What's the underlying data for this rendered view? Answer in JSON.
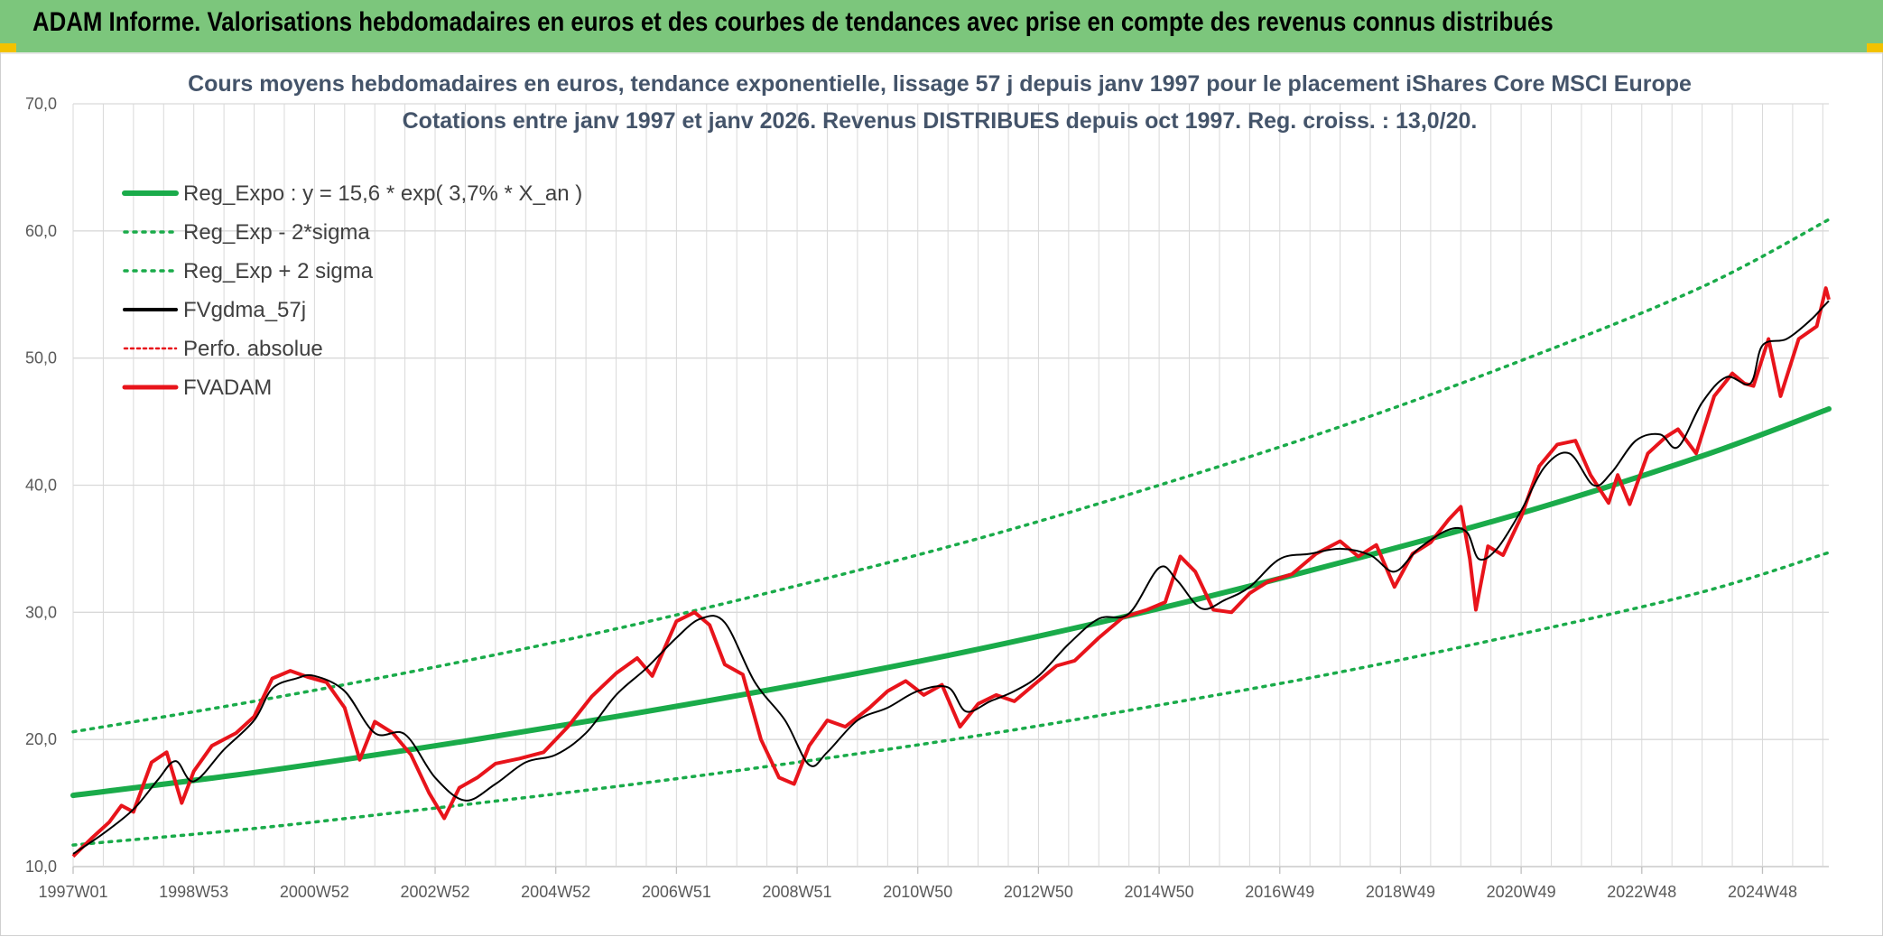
{
  "banner": {
    "title": "ADAM Informe. Valorisations hebdomadaires en euros et des courbes de tendances avec prise en compte des revenus connus distribués"
  },
  "colors": {
    "banner_bg": "#7cc67c",
    "trend": "#1aab4a",
    "fvgdma": "#000000",
    "fvadam": "#e8141b",
    "grid": "#d9d9d9"
  },
  "chart_data": {
    "type": "line",
    "title": "Cours moyens hebdomadaires en euros, tendance exponentielle, lissage 57 j depuis janv 1997 pour le placement iShares Core MSCI Europe",
    "subtitle": "Cotations entre janv 1997 et janv 2026. Revenus DISTRIBUES depuis oct 1997. Reg. croiss. : 13,0/20.",
    "ylim": [
      10,
      70
    ],
    "xlim": [
      1997.0,
      2026.1
    ],
    "y_ticks": [
      "10,0",
      "20,0",
      "30,0",
      "40,0",
      "50,0",
      "60,0",
      "70,0"
    ],
    "x_ticks": [
      {
        "label": "1997W01",
        "t": 1997.0
      },
      {
        "label": "1998W53",
        "t": 1999.0
      },
      {
        "label": "2000W52",
        "t": 2001.0
      },
      {
        "label": "2002W52",
        "t": 2003.0
      },
      {
        "label": "2004W52",
        "t": 2005.0
      },
      {
        "label": "2006W51",
        "t": 2007.0
      },
      {
        "label": "2008W51",
        "t": 2009.0
      },
      {
        "label": "2010W50",
        "t": 2011.0
      },
      {
        "label": "2012W50",
        "t": 2013.0
      },
      {
        "label": "2014W50",
        "t": 2015.0
      },
      {
        "label": "2016W49",
        "t": 2017.0
      },
      {
        "label": "2018W49",
        "t": 2019.0
      },
      {
        "label": "2020W49",
        "t": 2021.0
      },
      {
        "label": "2022W48",
        "t": 2023.0
      },
      {
        "label": "2024W48",
        "t": 2025.0
      }
    ],
    "legend": [
      {
        "key": "reg_expo",
        "label": "Reg_Expo : y = 15,6 * exp( 3,7% *  X_an )"
      },
      {
        "key": "reg_minus",
        "label": "Reg_Exp - 2*sigma"
      },
      {
        "key": "reg_plus",
        "label": "Reg_Exp + 2 sigma"
      },
      {
        "key": "fvgdma",
        "label": "FVgdma_57j"
      },
      {
        "key": "perfo",
        "label": "Perfo. absolue"
      },
      {
        "key": "fvadam",
        "label": "FVADAM"
      }
    ],
    "series": [
      {
        "name": "Reg_Expo",
        "style": "trend",
        "x": [
          1997.0,
          2000.0,
          2003.0,
          2006.0,
          2009.0,
          2012.0,
          2015.0,
          2018.0,
          2021.0,
          2024.0,
          2026.1
        ],
        "y": [
          15.6,
          17.4,
          19.5,
          21.8,
          24.3,
          27.1,
          30.3,
          33.9,
          37.8,
          42.3,
          46.0
        ]
      },
      {
        "name": "Reg_Exp + 2 sigma",
        "style": "dotted",
        "x": [
          1997.0,
          2000.0,
          2003.0,
          2006.0,
          2009.0,
          2012.0,
          2015.0,
          2018.0,
          2021.0,
          2024.0,
          2026.1
        ],
        "y": [
          20.6,
          23.0,
          25.7,
          28.7,
          32.1,
          35.8,
          40.0,
          44.6,
          49.8,
          55.6,
          60.9
        ]
      },
      {
        "name": "Reg_Exp - 2*sigma",
        "style": "dotted",
        "x": [
          1997.0,
          2000.0,
          2003.0,
          2006.0,
          2009.0,
          2012.0,
          2015.0,
          2018.0,
          2021.0,
          2024.0,
          2026.1
        ],
        "y": [
          11.7,
          13.0,
          14.6,
          16.3,
          18.2,
          20.3,
          22.7,
          25.3,
          28.3,
          31.6,
          34.7
        ]
      },
      {
        "name": "FVgdma_57j",
        "style": "smooth",
        "x": [
          1997.0,
          1997.5,
          1998.0,
          1998.4,
          1998.7,
          1999.0,
          1999.5,
          2000.0,
          2000.3,
          2000.7,
          2001.0,
          2001.5,
          2002.0,
          2002.5,
          2003.0,
          2003.5,
          2004.0,
          2004.5,
          2005.0,
          2005.5,
          2006.0,
          2006.5,
          2007.0,
          2007.4,
          2007.8,
          2008.3,
          2008.8,
          2009.2,
          2009.5,
          2010.0,
          2010.5,
          2011.0,
          2011.5,
          2011.8,
          2012.2,
          2012.6,
          2013.0,
          2013.5,
          2014.0,
          2014.5,
          2015.0,
          2015.3,
          2015.7,
          2016.1,
          2016.5,
          2017.0,
          2017.5,
          2018.0,
          2018.5,
          2018.9,
          2019.3,
          2019.8,
          2020.1,
          2020.3,
          2020.6,
          2021.0,
          2021.4,
          2021.8,
          2022.2,
          2022.5,
          2022.9,
          2023.3,
          2023.6,
          2024.0,
          2024.4,
          2024.8,
          2025.0,
          2025.4,
          2025.8,
          2026.0,
          2026.1
        ],
        "y": [
          11.0,
          12.6,
          14.5,
          16.8,
          18.3,
          16.7,
          19.2,
          21.5,
          24.0,
          24.8,
          25.0,
          23.8,
          20.5,
          20.4,
          17.0,
          15.2,
          16.5,
          18.2,
          18.8,
          20.5,
          23.5,
          25.6,
          28.0,
          29.5,
          29.2,
          24.5,
          21.5,
          18.0,
          19.0,
          21.5,
          22.5,
          23.8,
          24.1,
          22.2,
          23.0,
          23.8,
          25.0,
          27.5,
          29.5,
          29.9,
          33.5,
          32.5,
          30.3,
          31.0,
          32.0,
          34.2,
          34.6,
          35.0,
          34.5,
          33.2,
          35.0,
          36.5,
          36.3,
          34.2,
          35.0,
          38.0,
          41.5,
          42.5,
          40.0,
          41.0,
          43.5,
          44.0,
          43.0,
          46.5,
          48.5,
          48.0,
          51.0,
          51.5,
          53.0,
          54.0,
          54.5
        ]
      },
      {
        "name": "FVADAM",
        "style": "actual",
        "x": [
          1997.0,
          1997.3,
          1997.6,
          1997.8,
          1998.0,
          1998.3,
          1998.55,
          1998.8,
          1999.0,
          1999.3,
          1999.7,
          2000.0,
          2000.3,
          2000.6,
          2000.9,
          2001.2,
          2001.5,
          2001.75,
          2002.0,
          2002.3,
          2002.6,
          2002.9,
          2003.15,
          2003.4,
          2003.7,
          2004.0,
          2004.4,
          2004.8,
          2005.2,
          2005.6,
          2006.0,
          2006.35,
          2006.6,
          2007.0,
          2007.3,
          2007.55,
          2007.8,
          2008.1,
          2008.4,
          2008.7,
          2008.95,
          2009.2,
          2009.5,
          2009.8,
          2010.2,
          2010.5,
          2010.8,
          2011.1,
          2011.4,
          2011.7,
          2012.0,
          2012.3,
          2012.6,
          2012.9,
          2013.3,
          2013.6,
          2014.0,
          2014.4,
          2014.8,
          2015.1,
          2015.35,
          2015.6,
          2015.9,
          2016.2,
          2016.5,
          2016.8,
          2017.2,
          2017.6,
          2018.0,
          2018.3,
          2018.6,
          2018.9,
          2019.2,
          2019.5,
          2019.8,
          2020.0,
          2020.15,
          2020.25,
          2020.45,
          2020.7,
          2021.0,
          2021.3,
          2021.6,
          2021.9,
          2022.15,
          2022.45,
          2022.6,
          2022.8,
          2023.1,
          2023.4,
          2023.6,
          2023.9,
          2024.2,
          2024.5,
          2024.7,
          2024.85,
          2025.1,
          2025.3,
          2025.6,
          2025.9,
          2026.05,
          2026.1
        ],
        "y": [
          10.8,
          12.2,
          13.5,
          14.8,
          14.3,
          18.2,
          19.0,
          15.0,
          17.5,
          19.5,
          20.5,
          21.8,
          24.8,
          25.4,
          24.9,
          24.5,
          22.5,
          18.4,
          21.4,
          20.5,
          18.8,
          15.8,
          13.8,
          16.2,
          17.0,
          18.1,
          18.5,
          19.0,
          21.0,
          23.4,
          25.2,
          26.4,
          25.0,
          29.3,
          30.0,
          29.0,
          25.9,
          25.1,
          20.0,
          17.0,
          16.5,
          19.5,
          21.5,
          21.0,
          22.5,
          23.8,
          24.6,
          23.5,
          24.3,
          21.0,
          22.8,
          23.5,
          23.0,
          24.2,
          25.8,
          26.2,
          28.0,
          29.6,
          30.2,
          30.8,
          34.4,
          33.2,
          30.2,
          30.0,
          31.5,
          32.4,
          33.0,
          34.6,
          35.6,
          34.4,
          35.3,
          32.0,
          34.6,
          35.5,
          37.3,
          38.3,
          34.2,
          30.2,
          35.2,
          34.5,
          37.5,
          41.5,
          43.2,
          43.5,
          40.8,
          38.6,
          40.8,
          38.5,
          42.5,
          43.8,
          44.4,
          42.5,
          47.0,
          48.8,
          48.0,
          47.8,
          51.5,
          47.0,
          51.5,
          52.5,
          55.5,
          54.6
        ]
      }
    ]
  }
}
